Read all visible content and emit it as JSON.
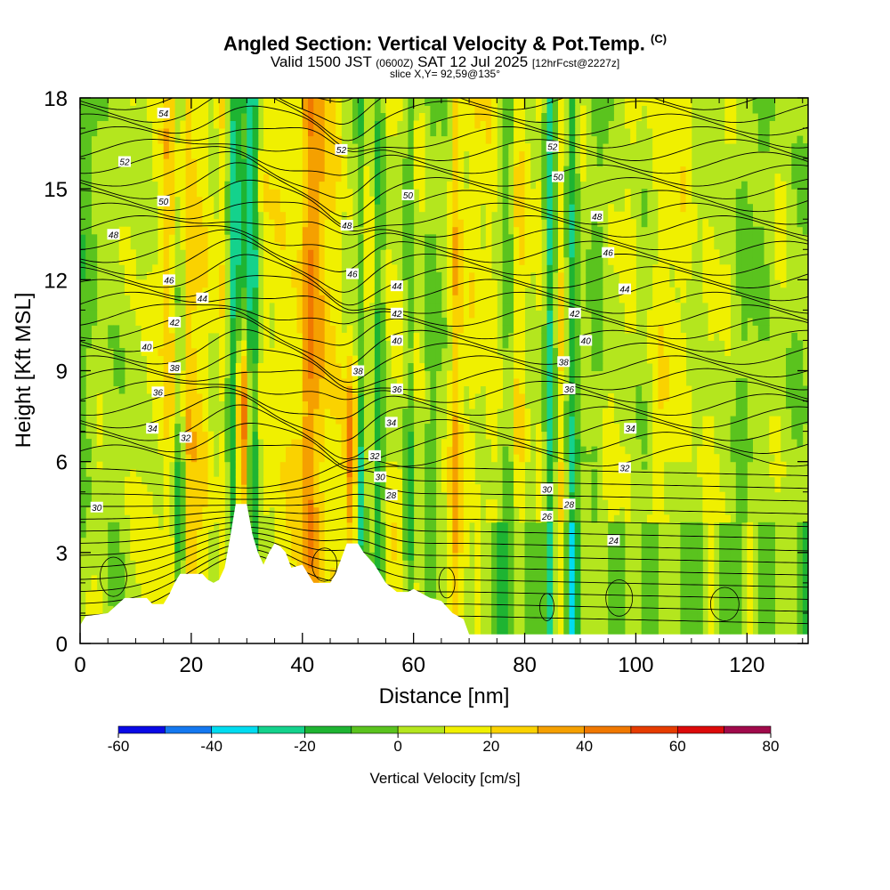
{
  "header": {
    "title": "Angled Section: Vertical Velocity & Pot.Temp.",
    "title_units": "(C)",
    "valid_prefix": "Valid 1500 JST",
    "valid_utc": "(0600Z)",
    "valid_date": "SAT 12 Jul 2025",
    "forecast_info": "[12hrFcst@2227z]",
    "slice_info": "slice X,Y= 92,59@135°"
  },
  "chart_data": {
    "type": "contour",
    "xlabel": "Distance [nm]",
    "ylabel": "Height [Kft MSL]",
    "xlim": [
      0,
      131
    ],
    "ylim": [
      0,
      18
    ],
    "x_ticks": [
      0,
      20,
      40,
      60,
      80,
      100,
      120
    ],
    "y_ticks": [
      0,
      3,
      6,
      9,
      12,
      15,
      18
    ],
    "colorbar": {
      "label": "Vertical Velocity [cm/s]",
      "ticks": [
        -60,
        -40,
        -20,
        0,
        20,
        40,
        60,
        80
      ],
      "bins": [
        -60,
        -50,
        -40,
        -30,
        -20,
        -10,
        0,
        10,
        20,
        30,
        40,
        50,
        60,
        70,
        80
      ],
      "colors": [
        "#0a0ae6",
        "#1478f0",
        "#00dcf0",
        "#14d28c",
        "#1eb432",
        "#5ac31e",
        "#b4e61e",
        "#f0f000",
        "#fad200",
        "#f5a000",
        "#f07800",
        "#e63c00",
        "#dc0a0a",
        "#a00a4b",
        "#6e0a8c"
      ]
    },
    "terrain_profile_kft": [
      [
        0,
        0.6
      ],
      [
        1,
        0.9
      ],
      [
        5,
        1.0
      ],
      [
        8,
        1.5
      ],
      [
        12,
        1.5
      ],
      [
        13,
        1.3
      ],
      [
        15,
        1.3
      ],
      [
        16,
        1.6
      ],
      [
        17,
        2.0
      ],
      [
        18,
        2.3
      ],
      [
        22,
        2.3
      ],
      [
        23,
        2.1
      ],
      [
        24,
        2.0
      ],
      [
        25,
        2.1
      ],
      [
        26,
        2.5
      ],
      [
        27,
        3.5
      ],
      [
        28,
        4.6
      ],
      [
        30,
        4.6
      ],
      [
        31,
        3.6
      ],
      [
        32,
        3.0
      ],
      [
        33,
        2.6
      ],
      [
        34,
        3.0
      ],
      [
        35,
        3.3
      ],
      [
        36,
        3.2
      ],
      [
        37,
        3.0
      ],
      [
        38,
        2.5
      ],
      [
        40,
        2.6
      ],
      [
        41,
        2.3
      ],
      [
        42,
        2.0
      ],
      [
        45,
        2.0
      ],
      [
        46,
        2.3
      ],
      [
        47,
        2.8
      ],
      [
        48,
        3.3
      ],
      [
        50,
        3.3
      ],
      [
        51,
        3.0
      ],
      [
        52,
        2.8
      ],
      [
        53,
        2.6
      ],
      [
        54,
        2.3
      ],
      [
        55,
        2.0
      ],
      [
        57,
        1.7
      ],
      [
        59,
        1.7
      ],
      [
        60,
        1.8
      ],
      [
        61,
        1.7
      ],
      [
        62,
        1.6
      ],
      [
        63,
        1.5
      ],
      [
        65,
        1.4
      ],
      [
        67,
        1.0
      ],
      [
        69,
        0.8
      ],
      [
        70,
        0.3
      ],
      [
        131,
        0.3
      ]
    ],
    "theta_contours": [
      {
        "value": "24",
        "label_at": [
          96,
          3.4
        ]
      },
      {
        "value": "26",
        "label_at": [
          84,
          4.2
        ]
      },
      {
        "value": "28",
        "label_at": [
          88,
          4.6
        ]
      },
      {
        "value": "28",
        "label_at": [
          56,
          4.9
        ]
      },
      {
        "value": "30",
        "label_at": [
          3,
          4.5
        ]
      },
      {
        "value": "30",
        "label_at": [
          54,
          5.5
        ]
      },
      {
        "value": "30",
        "label_at": [
          84,
          5.1
        ]
      },
      {
        "value": "32",
        "label_at": [
          19,
          6.8
        ]
      },
      {
        "value": "32",
        "label_at": [
          53,
          6.2
        ]
      },
      {
        "value": "32",
        "label_at": [
          98,
          5.8
        ]
      },
      {
        "value": "34",
        "label_at": [
          13,
          7.1
        ]
      },
      {
        "value": "34",
        "label_at": [
          56,
          7.3
        ]
      },
      {
        "value": "34",
        "label_at": [
          99,
          7.1
        ]
      },
      {
        "value": "36",
        "label_at": [
          14,
          8.3
        ]
      },
      {
        "value": "36",
        "label_at": [
          57,
          8.4
        ]
      },
      {
        "value": "36",
        "label_at": [
          88,
          8.4
        ]
      },
      {
        "value": "38",
        "label_at": [
          17,
          9.1
        ]
      },
      {
        "value": "38",
        "label_at": [
          50,
          9.0
        ]
      },
      {
        "value": "38",
        "label_at": [
          87,
          9.3
        ]
      },
      {
        "value": "40",
        "label_at": [
          12,
          9.8
        ]
      },
      {
        "value": "40",
        "label_at": [
          57,
          10.0
        ]
      },
      {
        "value": "40",
        "label_at": [
          91,
          10.0
        ]
      },
      {
        "value": "42",
        "label_at": [
          17,
          10.6
        ]
      },
      {
        "value": "42",
        "label_at": [
          57,
          10.9
        ]
      },
      {
        "value": "42",
        "label_at": [
          89,
          10.9
        ]
      },
      {
        "value": "44",
        "label_at": [
          22,
          11.4
        ]
      },
      {
        "value": "44",
        "label_at": [
          57,
          11.8
        ]
      },
      {
        "value": "44",
        "label_at": [
          98,
          11.7
        ]
      },
      {
        "value": "46",
        "label_at": [
          16,
          12.0
        ]
      },
      {
        "value": "46",
        "label_at": [
          49,
          12.2
        ]
      },
      {
        "value": "46",
        "label_at": [
          95,
          12.9
        ]
      },
      {
        "value": "48",
        "label_at": [
          6,
          13.5
        ]
      },
      {
        "value": "48",
        "label_at": [
          48,
          13.8
        ]
      },
      {
        "value": "48",
        "label_at": [
          93,
          14.1
        ]
      },
      {
        "value": "50",
        "label_at": [
          15,
          14.6
        ]
      },
      {
        "value": "50",
        "label_at": [
          59,
          14.8
        ]
      },
      {
        "value": "50",
        "label_at": [
          86,
          15.4
        ]
      },
      {
        "value": "52",
        "label_at": [
          8,
          15.9
        ]
      },
      {
        "value": "52",
        "label_at": [
          47,
          16.3
        ]
      },
      {
        "value": "52",
        "label_at": [
          85,
          16.4
        ]
      },
      {
        "value": "54",
        "label_at": [
          15,
          17.5
        ]
      }
    ],
    "vertical_velocity_features": [
      {
        "x": 3,
        "width": 2,
        "value": 5
      },
      {
        "x": 9,
        "width": 2,
        "value": 8
      },
      {
        "x": 16,
        "width": 1.2,
        "value": 15
      },
      {
        "x": 18,
        "width": 1,
        "value": -30
      },
      {
        "x": 19.5,
        "width": 1.5,
        "value": 22
      },
      {
        "x": 22,
        "width": 1.5,
        "value": 10
      },
      {
        "x": 26,
        "width": 1.2,
        "value": 20
      },
      {
        "x": 27.5,
        "width": 1.2,
        "value": -25
      },
      {
        "x": 29.2,
        "width": 1.4,
        "value": 55
      },
      {
        "x": 31,
        "width": 1.2,
        "value": -25
      },
      {
        "x": 33,
        "width": 1.5,
        "value": 12
      },
      {
        "x": 36,
        "width": 2,
        "value": 18
      },
      {
        "x": 38.5,
        "width": 1.5,
        "value": 12
      },
      {
        "x": 41,
        "width": 1.2,
        "value": 22
      },
      {
        "x": 43,
        "width": 2,
        "value": 20
      },
      {
        "x": 46,
        "width": 1.2,
        "value": 12
      },
      {
        "x": 48.8,
        "width": 1.3,
        "value": 35
      },
      {
        "x": 50.5,
        "width": 1,
        "value": -45
      },
      {
        "x": 52,
        "width": 1,
        "value": 10
      },
      {
        "x": 53.5,
        "width": 1,
        "value": -15
      },
      {
        "x": 56,
        "width": 1.2,
        "value": 15
      },
      {
        "x": 58,
        "width": 1,
        "value": 12
      },
      {
        "x": 59,
        "width": 1,
        "value": -30
      },
      {
        "x": 61,
        "width": 1,
        "value": 10
      },
      {
        "x": 65,
        "width": 1.2,
        "value": 8
      },
      {
        "x": 67.5,
        "width": 1.2,
        "value": 25
      },
      {
        "x": 71,
        "width": 2,
        "value": 8
      },
      {
        "x": 74,
        "width": 1.2,
        "value": 10
      },
      {
        "x": 77,
        "width": 1.2,
        "value": -15
      },
      {
        "x": 79,
        "width": 1.2,
        "value": 10
      },
      {
        "x": 83,
        "width": 1.2,
        "value": 12
      },
      {
        "x": 84.5,
        "width": 1,
        "value": -25
      },
      {
        "x": 86.5,
        "width": 1,
        "value": 18
      },
      {
        "x": 88.5,
        "width": 1,
        "value": -20
      },
      {
        "x": 91,
        "width": 1.5,
        "value": 10
      },
      {
        "x": 95,
        "width": 1.5,
        "value": 8
      },
      {
        "x": 99,
        "width": 1.5,
        "value": 6
      },
      {
        "x": 104,
        "width": 1.5,
        "value": 8
      },
      {
        "x": 109,
        "width": 1.5,
        "value": 6
      },
      {
        "x": 113,
        "width": 1.5,
        "value": 8
      },
      {
        "x": 117,
        "width": 1.5,
        "value": 6
      },
      {
        "x": 121,
        "width": 1.5,
        "value": 8
      },
      {
        "x": 126,
        "width": 2,
        "value": 6
      }
    ]
  }
}
